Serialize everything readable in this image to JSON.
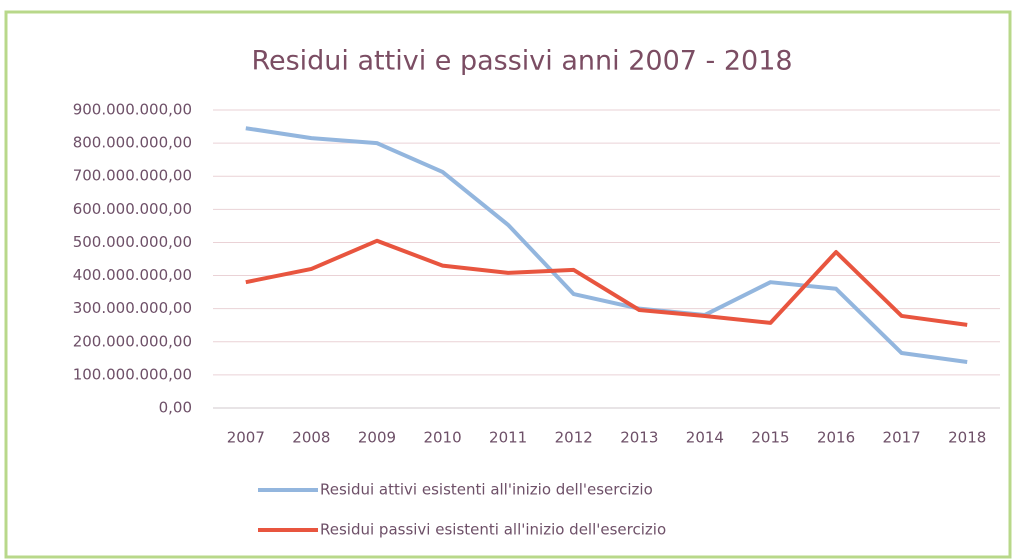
{
  "chart_data": {
    "type": "line",
    "title": "Residui attivi e passivi anni 2007 - 2018",
    "categories": [
      "2007",
      "2008",
      "2009",
      "2010",
      "2011",
      "2012",
      "2013",
      "2014",
      "2015",
      "2016",
      "2017",
      "2018"
    ],
    "series": [
      {
        "name": "Residui attivi esistenti all'inizio dell'esercizio",
        "color": "#93b6de",
        "values": [
          845000000,
          815000000,
          800000000,
          713000000,
          553000000,
          344000000,
          300000000,
          281000000,
          380000000,
          360000000,
          166000000,
          139000000
        ]
      },
      {
        "name": "Residui passivi esistenti all'inizio dell'esercizio",
        "color": "#e8553f",
        "values": [
          380000000,
          420000000,
          505000000,
          430000000,
          408000000,
          417000000,
          296000000,
          278000000,
          257000000,
          471000000,
          278000000,
          251000000
        ]
      }
    ],
    "ylim": [
      0,
      900000000
    ],
    "yticks": [
      {
        "value": 0,
        "label": "0,00"
      },
      {
        "value": 100000000,
        "label": "100.000.000,00"
      },
      {
        "value": 200000000,
        "label": "200.000.000,00"
      },
      {
        "value": 300000000,
        "label": "300.000.000,00"
      },
      {
        "value": 400000000,
        "label": "400.000.000,00"
      },
      {
        "value": 500000000,
        "label": "500.000.000,00"
      },
      {
        "value": 600000000,
        "label": "600.000.000,00"
      },
      {
        "value": 700000000,
        "label": "700.000.000,00"
      },
      {
        "value": 800000000,
        "label": "800.000.000,00"
      },
      {
        "value": 900000000,
        "label": "900.000.000,00"
      }
    ],
    "grid": true,
    "legend": "bottom"
  }
}
